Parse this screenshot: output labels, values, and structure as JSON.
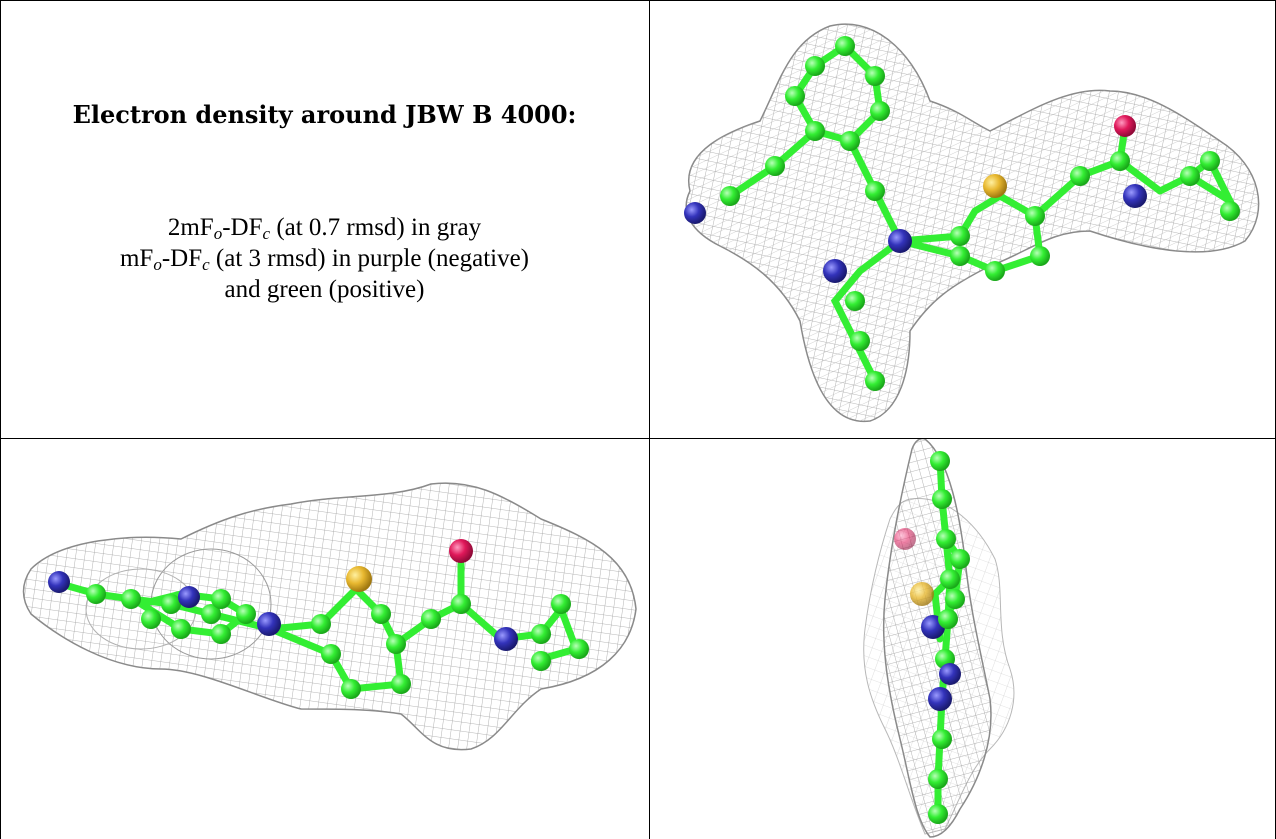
{
  "caption": {
    "title": "Electron density around JBW B 4000:",
    "line1": {
      "a": "2mF",
      "sub1": "o",
      "b": "-DF",
      "sub2": "c",
      "c": " (at 0.7 rmsd) in gray"
    },
    "line2": {
      "a": "mF",
      "sub1": "o",
      "b": "-DF",
      "sub2": "c",
      "c": " (at 3 rmsd) in purple (negative)"
    },
    "line3": "and green (positive)"
  },
  "colors": {
    "carbon": "#33ee33",
    "nitrogen": "#3333bb",
    "sulfur": "#e8b830",
    "oxygen": "#e0185a",
    "mesh": "#a0a0a0",
    "border": "#000000"
  },
  "panels": [
    {
      "name": "ligand-view-top",
      "view": "face-on"
    },
    {
      "name": "ligand-view-side",
      "view": "edge-on horizontal"
    },
    {
      "name": "ligand-view-end",
      "view": "end-on vertical"
    }
  ]
}
